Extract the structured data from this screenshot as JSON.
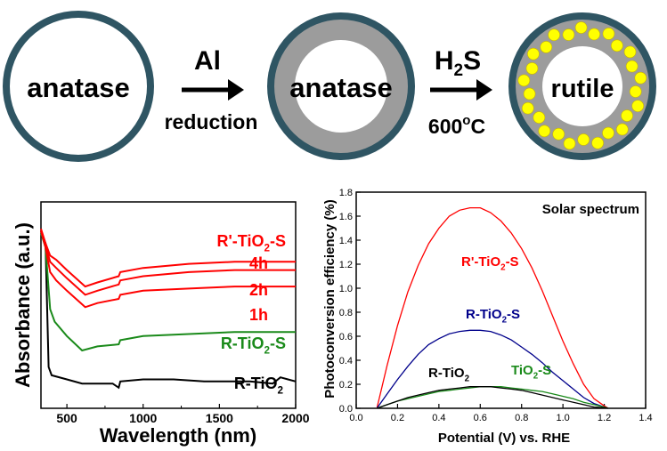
{
  "scheme": {
    "step1": {
      "label": "anatase"
    },
    "arrow1": {
      "top": "Al",
      "bottom": "reduction"
    },
    "step2": {
      "label": "anatase"
    },
    "arrow2": {
      "top_main": "H",
      "top_sub": "2",
      "top_end": "S",
      "bottom_main": "600",
      "bottom_sup": "o",
      "bottom_end": "C"
    },
    "step3": {
      "label": "rutile"
    },
    "colors": {
      "ring": "#2f5563",
      "shell": "#9c9c9c",
      "dot": "#ffff00",
      "dot_stroke": "#c8b400"
    }
  },
  "chart_data": [
    {
      "type": "line",
      "ylabel": "Absorbance (a.u.)",
      "xlabel": "Wavelength (nm)",
      "xlim": [
        330,
        2000
      ],
      "ylim": [
        0,
        1
      ],
      "x_ticks": [
        "500",
        "1000",
        "1500",
        "2000"
      ],
      "y_ticks": [],
      "series": [
        {
          "color": "#000000",
          "points": [
            [
              330,
              0.86
            ],
            [
              360,
              0.8
            ],
            [
              380,
              0.2
            ],
            [
              400,
              0.16
            ],
            [
              500,
              0.14
            ],
            [
              600,
              0.12
            ],
            [
              800,
              0.12
            ],
            [
              840,
              0.1
            ],
            [
              850,
              0.13
            ],
            [
              1000,
              0.14
            ],
            [
              1200,
              0.14
            ],
            [
              1400,
              0.13
            ],
            [
              1700,
              0.13
            ],
            [
              1850,
              0.12
            ],
            [
              1900,
              0.15
            ],
            [
              1950,
              0.14
            ],
            [
              2000,
              0.13
            ]
          ]
        },
        {
          "color": "#1a8a1a",
          "points": [
            [
              330,
              0.85
            ],
            [
              360,
              0.78
            ],
            [
              390,
              0.48
            ],
            [
              420,
              0.42
            ],
            [
              500,
              0.35
            ],
            [
              600,
              0.28
            ],
            [
              700,
              0.3
            ],
            [
              840,
              0.31
            ],
            [
              850,
              0.33
            ],
            [
              1000,
              0.35
            ],
            [
              1300,
              0.36
            ],
            [
              1600,
              0.37
            ],
            [
              2000,
              0.37
            ]
          ]
        },
        {
          "color": "#ff0000",
          "points": [
            [
              330,
              0.86
            ],
            [
              360,
              0.78
            ],
            [
              390,
              0.66
            ],
            [
              430,
              0.62
            ],
            [
              500,
              0.57
            ],
            [
              620,
              0.49
            ],
            [
              700,
              0.51
            ],
            [
              840,
              0.53
            ],
            [
              850,
              0.55
            ],
            [
              1000,
              0.57
            ],
            [
              1300,
              0.58
            ],
            [
              1600,
              0.59
            ],
            [
              2000,
              0.59
            ]
          ]
        },
        {
          "color": "#ff0000",
          "points": [
            [
              330,
              0.86
            ],
            [
              360,
              0.79
            ],
            [
              390,
              0.71
            ],
            [
              430,
              0.68
            ],
            [
              500,
              0.63
            ],
            [
              620,
              0.55
            ],
            [
              700,
              0.57
            ],
            [
              840,
              0.6
            ],
            [
              850,
              0.62
            ],
            [
              1000,
              0.64
            ],
            [
              1300,
              0.66
            ],
            [
              1600,
              0.67
            ],
            [
              2000,
              0.67
            ]
          ]
        },
        {
          "color": "#ff0000",
          "points": [
            [
              330,
              0.87
            ],
            [
              360,
              0.8
            ],
            [
              390,
              0.74
            ],
            [
              430,
              0.72
            ],
            [
              500,
              0.67
            ],
            [
              620,
              0.59
            ],
            [
              700,
              0.61
            ],
            [
              840,
              0.64
            ],
            [
              850,
              0.66
            ],
            [
              1000,
              0.68
            ],
            [
              1300,
              0.7
            ],
            [
              1600,
              0.71
            ],
            [
              2000,
              0.71
            ]
          ]
        }
      ],
      "annotations": [
        {
          "text": "R'-TiO",
          "sub": "2",
          "end": "-S",
          "color": "#ff0000"
        },
        {
          "text": "4h",
          "color": "#ff0000"
        },
        {
          "text": "2h",
          "color": "#ff0000"
        },
        {
          "text": "1h",
          "color": "#ff0000"
        },
        {
          "text": "R-TiO",
          "sub": "2",
          "end": "-S",
          "color": "#1a8a1a"
        },
        {
          "text": "R-TiO",
          "sub": "2",
          "end": "",
          "color": "#000000"
        }
      ]
    },
    {
      "type": "line",
      "ylabel": "Photoconversion efficiency (%)",
      "xlabel": "Potential (V) vs. RHE",
      "title_in_plot": "Solar spectrum",
      "xlim": [
        0,
        1.4
      ],
      "ylim": [
        0,
        1.8
      ],
      "x_ticks": [
        0.0,
        0.2,
        0.4,
        0.6,
        0.8,
        1.0,
        1.2,
        1.4
      ],
      "y_ticks": [
        0.0,
        0.2,
        0.4,
        0.6,
        0.8,
        1.0,
        1.2,
        1.4,
        1.6,
        1.8
      ],
      "series": [
        {
          "color": "#ff0000",
          "points": [
            [
              0.1,
              0
            ],
            [
              0.15,
              0.36
            ],
            [
              0.2,
              0.69
            ],
            [
              0.25,
              0.97
            ],
            [
              0.3,
              1.19
            ],
            [
              0.35,
              1.37
            ],
            [
              0.4,
              1.5
            ],
            [
              0.45,
              1.6
            ],
            [
              0.5,
              1.65
            ],
            [
              0.55,
              1.67
            ],
            [
              0.6,
              1.67
            ],
            [
              0.65,
              1.63
            ],
            [
              0.7,
              1.56
            ],
            [
              0.75,
              1.46
            ],
            [
              0.8,
              1.33
            ],
            [
              0.85,
              1.17
            ],
            [
              0.9,
              0.98
            ],
            [
              0.95,
              0.77
            ],
            [
              1.0,
              0.56
            ],
            [
              1.05,
              0.37
            ],
            [
              1.1,
              0.2
            ],
            [
              1.15,
              0.08
            ],
            [
              1.2,
              0.02
            ],
            [
              1.22,
              0
            ]
          ]
        },
        {
          "color": "#00008b",
          "points": [
            [
              0.1,
              0
            ],
            [
              0.15,
              0.12
            ],
            [
              0.2,
              0.24
            ],
            [
              0.25,
              0.35
            ],
            [
              0.3,
              0.45
            ],
            [
              0.35,
              0.53
            ],
            [
              0.4,
              0.58
            ],
            [
              0.45,
              0.62
            ],
            [
              0.5,
              0.64
            ],
            [
              0.55,
              0.65
            ],
            [
              0.6,
              0.65
            ],
            [
              0.65,
              0.64
            ],
            [
              0.7,
              0.61
            ],
            [
              0.75,
              0.57
            ],
            [
              0.8,
              0.51
            ],
            [
              0.85,
              0.45
            ],
            [
              0.9,
              0.38
            ],
            [
              0.95,
              0.3
            ],
            [
              1.0,
              0.23
            ],
            [
              1.05,
              0.16
            ],
            [
              1.1,
              0.09
            ],
            [
              1.15,
              0.04
            ],
            [
              1.2,
              0.01
            ],
            [
              1.22,
              0
            ]
          ]
        },
        {
          "color": "#1a8a1a",
          "points": [
            [
              0.1,
              0
            ],
            [
              0.15,
              0.03
            ],
            [
              0.2,
              0.06
            ],
            [
              0.25,
              0.08
            ],
            [
              0.3,
              0.1
            ],
            [
              0.35,
              0.12
            ],
            [
              0.4,
              0.14
            ],
            [
              0.45,
              0.15
            ],
            [
              0.5,
              0.16
            ],
            [
              0.55,
              0.17
            ],
            [
              0.6,
              0.18
            ],
            [
              0.65,
              0.18
            ],
            [
              0.7,
              0.18
            ],
            [
              0.75,
              0.17
            ],
            [
              0.8,
              0.16
            ],
            [
              0.85,
              0.15
            ],
            [
              0.9,
              0.14
            ],
            [
              0.95,
              0.12
            ],
            [
              1.0,
              0.1
            ],
            [
              1.05,
              0.08
            ],
            [
              1.1,
              0.05
            ],
            [
              1.15,
              0.03
            ],
            [
              1.2,
              0.01
            ],
            [
              1.22,
              0
            ]
          ]
        },
        {
          "color": "#000000",
          "points": [
            [
              0.1,
              0
            ],
            [
              0.15,
              0.03
            ],
            [
              0.2,
              0.06
            ],
            [
              0.25,
              0.09
            ],
            [
              0.3,
              0.11
            ],
            [
              0.35,
              0.13
            ],
            [
              0.4,
              0.15
            ],
            [
              0.45,
              0.16
            ],
            [
              0.5,
              0.17
            ],
            [
              0.55,
              0.18
            ],
            [
              0.6,
              0.18
            ],
            [
              0.65,
              0.18
            ],
            [
              0.7,
              0.17
            ],
            [
              0.75,
              0.16
            ],
            [
              0.8,
              0.15
            ],
            [
              0.85,
              0.13
            ],
            [
              0.9,
              0.11
            ],
            [
              0.95,
              0.09
            ],
            [
              1.0,
              0.07
            ],
            [
              1.05,
              0.05
            ],
            [
              1.1,
              0.03
            ],
            [
              1.15,
              0.01
            ],
            [
              1.2,
              0.005
            ],
            [
              1.22,
              0
            ]
          ]
        }
      ],
      "annotations": [
        {
          "text": "R'-TiO",
          "sub": "2",
          "end": "-S",
          "color": "#ff0000"
        },
        {
          "text": "R-TiO",
          "sub": "2",
          "end": "-S",
          "color": "#00008b"
        },
        {
          "text": "R-TiO",
          "sub": "2",
          "end": "",
          "color": "#000000"
        },
        {
          "text": "TiO",
          "sub": "2",
          "end": "-S",
          "color": "#1a8a1a"
        }
      ]
    }
  ]
}
